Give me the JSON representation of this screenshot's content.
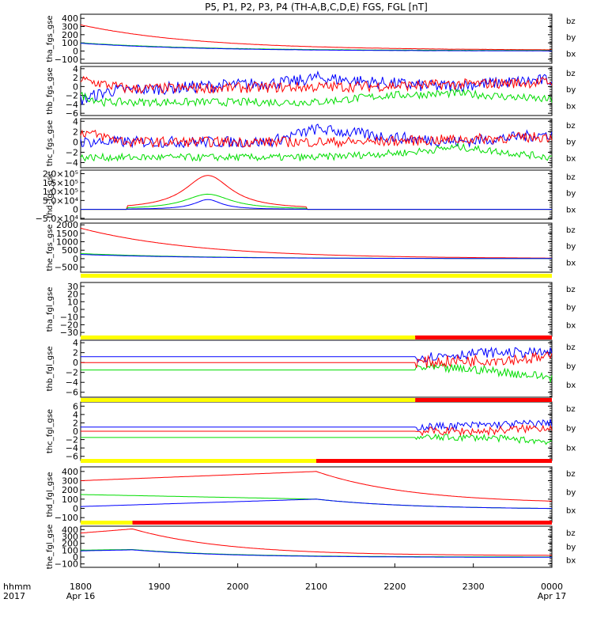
{
  "title": "P5, P1, P2, P3, P4 (TH-A,B,C,D,E) FGS, FGL [nT]",
  "colors": {
    "bx": "#0000ff",
    "by": "#00dd00",
    "bz": "#ff0000",
    "yellow": "#ffff00",
    "red": "#ff0000"
  },
  "time_axis": {
    "row_label_1": "hhmm",
    "row_label_2": "2017",
    "ticks": [
      {
        "label": "1800",
        "sub": "Apr 16"
      },
      {
        "label": "1900",
        "sub": ""
      },
      {
        "label": "2000",
        "sub": ""
      },
      {
        "label": "2100",
        "sub": ""
      },
      {
        "label": "2200",
        "sub": ""
      },
      {
        "label": "2300",
        "sub": ""
      },
      {
        "label": "0000",
        "sub": "Apr 17"
      }
    ]
  },
  "chart_data": [
    {
      "type": "line",
      "ylabel": "tha_fgs_gse",
      "ylim": [
        -150,
        450
      ],
      "yticks": [
        "400",
        "300",
        "200",
        "100",
        "0",
        "−100"
      ],
      "ytick_values": [
        400,
        300,
        200,
        100,
        0,
        -100
      ],
      "legend": [
        "bz",
        "by",
        "bx"
      ],
      "series": [
        {
          "name": "bz",
          "shape": "decay",
          "start": 320,
          "end": 10,
          "noise": 2
        },
        {
          "name": "by",
          "shape": "decay",
          "start": 100,
          "end": 5,
          "noise": 2
        },
        {
          "name": "bx",
          "shape": "decay",
          "start": 95,
          "end": 0,
          "noise": 2
        }
      ]
    },
    {
      "type": "line",
      "ylabel": "thb_fgs_gse",
      "ylim": [
        -6.5,
        4.5
      ],
      "yticks": [
        "4",
        "2",
        "0",
        "−2",
        "−4",
        "−6"
      ],
      "ytick_values": [
        4,
        2,
        0,
        -2,
        -4,
        -6
      ],
      "legend": [
        "bz",
        "by",
        "bx"
      ],
      "series": [
        {
          "name": "bx",
          "shape": "noisy",
          "base": [
            [
              0,
              -3
            ],
            [
              0.06,
              -1
            ],
            [
              0.45,
              1
            ],
            [
              0.5,
              2
            ],
            [
              0.62,
              1
            ],
            [
              0.75,
              0
            ],
            [
              1,
              1.5
            ]
          ],
          "noise": 1.4
        },
        {
          "name": "by",
          "shape": "noisy",
          "base": [
            [
              0,
              -2
            ],
            [
              0.05,
              -3.5
            ],
            [
              0.5,
              -3.5
            ],
            [
              0.65,
              -2
            ],
            [
              0.8,
              -1.5
            ],
            [
              1,
              -3
            ]
          ],
          "noise": 0.9
        },
        {
          "name": "bz",
          "shape": "noisy",
          "base": [
            [
              0,
              1.5
            ],
            [
              0.1,
              -0.5
            ],
            [
              0.6,
              0
            ],
            [
              0.8,
              0.5
            ],
            [
              1,
              1
            ]
          ],
          "noise": 1.2
        }
      ]
    },
    {
      "type": "line",
      "ylabel": "thc_fgs_gse",
      "ylim": [
        -5,
        4.5
      ],
      "yticks": [
        "4",
        "2",
        "0",
        "−2",
        "−4"
      ],
      "ytick_values": [
        4,
        2,
        0,
        -2,
        -4
      ],
      "legend": [
        "bz",
        "by",
        "bx"
      ],
      "series": [
        {
          "name": "bx",
          "shape": "noisy",
          "base": [
            [
              0,
              0
            ],
            [
              0.4,
              0
            ],
            [
              0.5,
              2.5
            ],
            [
              0.65,
              1
            ],
            [
              0.8,
              0
            ],
            [
              1,
              1.5
            ]
          ],
          "noise": 1.1
        },
        {
          "name": "by",
          "shape": "noisy",
          "base": [
            [
              0,
              -3
            ],
            [
              0.5,
              -3
            ],
            [
              0.7,
              -2
            ],
            [
              0.8,
              -1
            ],
            [
              1,
              -3
            ]
          ],
          "noise": 0.7
        },
        {
          "name": "bz",
          "shape": "noisy",
          "base": [
            [
              0,
              2
            ],
            [
              0.1,
              0
            ],
            [
              0.6,
              0
            ],
            [
              0.8,
              0.5
            ],
            [
              1,
              1
            ]
          ],
          "noise": 1.0
        }
      ]
    },
    {
      "type": "line",
      "ylabel": "thd_fgs_gse",
      "ylim": [
        -55000,
        220000
      ],
      "yticks": [
        "2.0×10⁵",
        "1.5×10⁵",
        "1.0×10⁵",
        "5.0×10⁴",
        "0",
        "−5.0×10⁴"
      ],
      "ytick_values": [
        200000,
        150000,
        100000,
        50000,
        0,
        -50000
      ],
      "legend": [
        "bz",
        "by",
        "bx"
      ],
      "series": [
        {
          "name": "bz",
          "shape": "peak",
          "center": 0.27,
          "width": 0.06,
          "amp": 190000
        },
        {
          "name": "by",
          "shape": "peak",
          "center": 0.27,
          "width": 0.06,
          "amp": 85000
        },
        {
          "name": "bx",
          "shape": "peak",
          "center": 0.27,
          "width": 0.035,
          "amp": 55000
        }
      ]
    },
    {
      "type": "line",
      "ylabel": "the_fgs_gse",
      "ylim": [
        -800,
        2100
      ],
      "yticks": [
        "2000",
        "1500",
        "1000",
        "500",
        "0",
        "−500"
      ],
      "ytick_values": [
        2000,
        1500,
        1000,
        500,
        0,
        -500
      ],
      "legend": [
        "bz",
        "by",
        "bx"
      ],
      "series": [
        {
          "name": "bz",
          "shape": "decay",
          "start": 1800,
          "end": 0,
          "noise": 0
        },
        {
          "name": "by",
          "shape": "decay",
          "start": 300,
          "end": 0,
          "noise": 0
        },
        {
          "name": "bx",
          "shape": "decay",
          "start": 250,
          "end": 0,
          "noise": 0
        }
      ]
    },
    {
      "type": "line",
      "ylabel": "tha_fgl_gse",
      "ylim": [
        -35,
        35
      ],
      "yticks": [
        "30",
        "20",
        "10",
        "0",
        "−10",
        "−20",
        "−30"
      ],
      "ytick_values": [
        30,
        20,
        10,
        0,
        -10,
        -20,
        -30
      ],
      "legend": [
        "bz",
        "by",
        "bx"
      ],
      "series": []
    },
    {
      "type": "line",
      "ylabel": "thb_fgl_gse",
      "ylim": [
        -7,
        4.5
      ],
      "yticks": [
        "4",
        "2",
        "0",
        "−2",
        "−4",
        "−6"
      ],
      "ytick_values": [
        4,
        2,
        0,
        -2,
        -4,
        -6
      ],
      "legend": [
        "bz",
        "by",
        "bx"
      ],
      "series": [
        {
          "name": "bx",
          "shape": "gap",
          "flat": 1.2,
          "start": 0.71,
          "base": [
            [
              0,
              1
            ],
            [
              0.5,
              2
            ],
            [
              1,
              2
            ]
          ],
          "noise": 1.0
        },
        {
          "name": "by",
          "shape": "gap",
          "flat": -1.5,
          "start": 0.71,
          "base": [
            [
              0,
              -1
            ],
            [
              0.5,
              -1.5
            ],
            [
              1,
              -3
            ]
          ],
          "noise": 0.9
        },
        {
          "name": "bz",
          "shape": "gap",
          "flat": 0,
          "start": 0.71,
          "base": [
            [
              0,
              0
            ],
            [
              0.5,
              0.5
            ],
            [
              1,
              1
            ]
          ],
          "noise": 1.2
        }
      ]
    },
    {
      "type": "line",
      "ylabel": "thc_fgl_gse",
      "ylim": [
        -7,
        7
      ],
      "yticks": [
        "6",
        "4",
        "2",
        "0",
        "−2",
        "−4",
        "−6"
      ],
      "ytick_values": [
        6,
        4,
        2,
        0,
        -2,
        -4,
        -6
      ],
      "legend": [
        "bz",
        "by",
        "bx"
      ],
      "series": [
        {
          "name": "bx",
          "shape": "gap",
          "flat": 1,
          "start": 0.71,
          "base": [
            [
              0,
              1
            ],
            [
              0.5,
              1.5
            ],
            [
              1,
              2
            ]
          ],
          "noise": 0.9
        },
        {
          "name": "by",
          "shape": "gap",
          "flat": -1.5,
          "start": 0.71,
          "base": [
            [
              0,
              -1.5
            ],
            [
              0.5,
              -1.5
            ],
            [
              1,
              -2.5
            ]
          ],
          "noise": 0.8
        },
        {
          "name": "bz",
          "shape": "gap",
          "flat": 0,
          "start": 0.71,
          "base": [
            [
              0,
              0
            ],
            [
              0.5,
              0
            ],
            [
              1,
              1
            ]
          ],
          "noise": 1.0
        }
      ]
    },
    {
      "type": "line",
      "ylabel": "thd_fgl_gse",
      "ylim": [
        -150,
        450
      ],
      "yticks": [
        "400",
        "300",
        "200",
        "100",
        "0",
        "−100"
      ],
      "ytick_values": [
        400,
        300,
        200,
        100,
        0,
        -100
      ],
      "legend": [
        "bz",
        "by",
        "bx"
      ],
      "series": [
        {
          "name": "bz",
          "shape": "rise_decay",
          "start": 300,
          "peak": 400,
          "peak_at": 0.5,
          "end": 50
        },
        {
          "name": "by",
          "shape": "rise_decay",
          "start": 150,
          "peak": 100,
          "peak_at": 0.5,
          "end": -10
        },
        {
          "name": "bx",
          "shape": "rise_decay",
          "start": 20,
          "peak": 100,
          "peak_at": 0.5,
          "end": -10
        }
      ]
    },
    {
      "type": "line",
      "ylabel": "the_fgl_gse",
      "ylim": [
        -150,
        450
      ],
      "yticks": [
        "400",
        "300",
        "200",
        "100",
        "0",
        "−100"
      ],
      "ytick_values": [
        400,
        300,
        200,
        100,
        0,
        -100
      ],
      "legend": [
        "bz",
        "by",
        "bx"
      ],
      "series": [
        {
          "name": "bz",
          "shape": "rise_decay",
          "start": 350,
          "peak": 410,
          "peak_at": 0.11,
          "end": 20
        },
        {
          "name": "by",
          "shape": "rise_decay",
          "start": 100,
          "peak": 110,
          "peak_at": 0.11,
          "end": 0
        },
        {
          "name": "bx",
          "shape": "rise_decay",
          "start": 90,
          "peak": 105,
          "peak_at": 0.11,
          "end": -5
        }
      ]
    }
  ],
  "status_bars": [
    {
      "segments": []
    },
    {
      "segments": []
    },
    {
      "segments": []
    },
    {
      "segments": []
    },
    {
      "segments": [
        {
          "from": 0,
          "to": 1,
          "color": "yellow"
        }
      ]
    },
    {
      "segments": [
        {
          "from": 0,
          "to": 0.71,
          "color": "yellow"
        },
        {
          "from": 0.71,
          "to": 1,
          "color": "red"
        }
      ]
    },
    {
      "segments": [
        {
          "from": 0,
          "to": 0.71,
          "color": "yellow"
        },
        {
          "from": 0.71,
          "to": 1,
          "color": "red"
        }
      ]
    },
    {
      "segments": [
        {
          "from": 0,
          "to": 0.5,
          "color": "yellow"
        },
        {
          "from": 0.5,
          "to": 1,
          "color": "red"
        }
      ]
    },
    {
      "segments": [
        {
          "from": 0,
          "to": 0.11,
          "color": "yellow"
        },
        {
          "from": 0.11,
          "to": 1,
          "color": "red"
        }
      ]
    },
    {
      "segments": []
    }
  ]
}
